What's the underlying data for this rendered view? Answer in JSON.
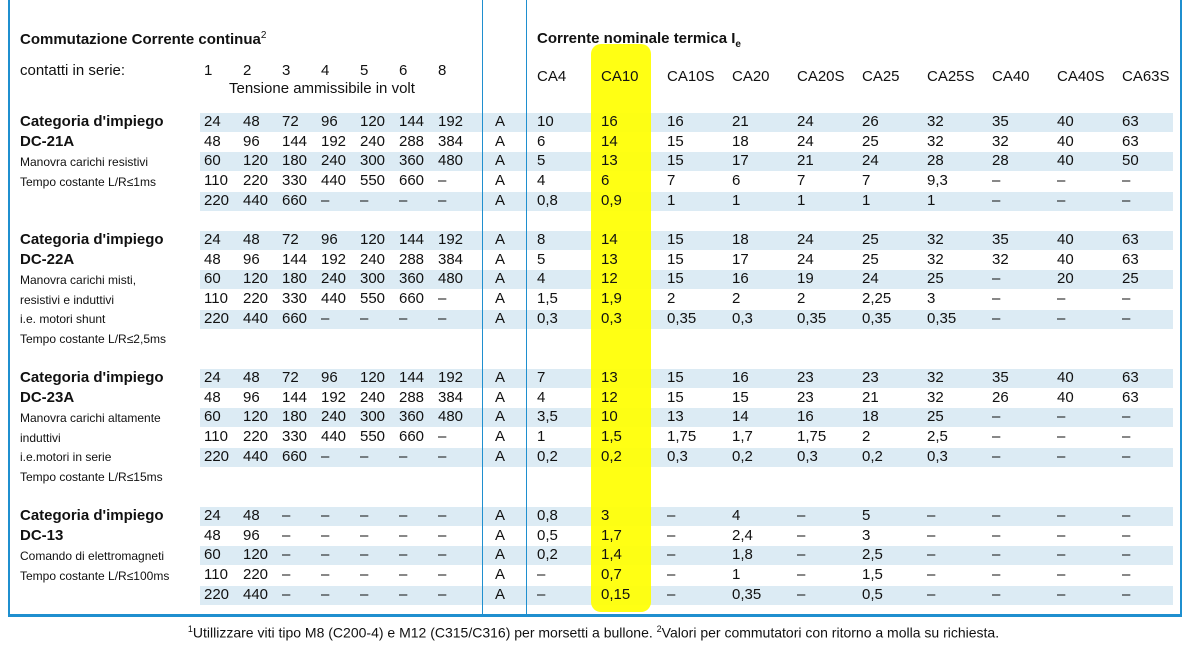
{
  "header": {
    "left_title": "Commutazione Corrente continua",
    "left_title_sup": "2",
    "right_title": "Corrente nominale termica I",
    "right_title_sub": "e",
    "contatti_label": "contatti in serie:",
    "series_numbers": [
      "1",
      "2",
      "3",
      "4",
      "5",
      "6",
      "8"
    ],
    "tensione_label": "Tensione ammissibile in volt",
    "models": [
      "CA4",
      "CA10",
      "CA10S",
      "CA20",
      "CA20S",
      "CA25",
      "CA25S",
      "CA40",
      "CA40S",
      "CA63S"
    ]
  },
  "groups": [
    {
      "title1": "Categoria d'impiego",
      "title2": "DC-21A",
      "desc": [
        "Manovra carichi resistivi",
        "Tempo costante L/R≤1ms"
      ],
      "rows": [
        {
          "v": [
            "24",
            "48",
            "72",
            "96",
            "120",
            "144",
            "192"
          ],
          "u": "A",
          "c": [
            "10",
            "16",
            "16",
            "21",
            "24",
            "26",
            "32",
            "35",
            "40",
            "63"
          ]
        },
        {
          "v": [
            "48",
            "96",
            "144",
            "192",
            "240",
            "288",
            "384"
          ],
          "u": "A",
          "c": [
            "6",
            "14",
            "15",
            "18",
            "24",
            "25",
            "32",
            "32",
            "40",
            "63"
          ]
        },
        {
          "v": [
            "60",
            "120",
            "180",
            "240",
            "300",
            "360",
            "480"
          ],
          "u": "A",
          "c": [
            "5",
            "13",
            "15",
            "17",
            "21",
            "24",
            "28",
            "28",
            "40",
            "50"
          ]
        },
        {
          "v": [
            "110",
            "220",
            "330",
            "440",
            "550",
            "660",
            "–"
          ],
          "u": "A",
          "c": [
            "4",
            "6",
            "7",
            "6",
            "7",
            "7",
            "9,3",
            "–",
            "–",
            "–"
          ]
        },
        {
          "v": [
            "220",
            "440",
            "660",
            "–",
            "–",
            "–",
            "–"
          ],
          "u": "A",
          "c": [
            "0,8",
            "0,9",
            "1",
            "1",
            "1",
            "1",
            "1",
            "–",
            "–",
            "–"
          ]
        }
      ]
    },
    {
      "title1": "Categoria d'impiego",
      "title2": "DC-22A",
      "desc": [
        "Manovra carichi misti,",
        "resistivi e induttivi",
        "i.e. motori shunt",
        "Tempo costante L/R≤2,5ms"
      ],
      "rows": [
        {
          "v": [
            "24",
            "48",
            "72",
            "96",
            "120",
            "144",
            "192"
          ],
          "u": "A",
          "c": [
            "8",
            "14",
            "15",
            "18",
            "24",
            "25",
            "32",
            "35",
            "40",
            "63"
          ]
        },
        {
          "v": [
            "48",
            "96",
            "144",
            "192",
            "240",
            "288",
            "384"
          ],
          "u": "A",
          "c": [
            "5",
            "13",
            "15",
            "17",
            "24",
            "25",
            "32",
            "32",
            "40",
            "63"
          ]
        },
        {
          "v": [
            "60",
            "120",
            "180",
            "240",
            "300",
            "360",
            "480"
          ],
          "u": "A",
          "c": [
            "4",
            "12",
            "15",
            "16",
            "19",
            "24",
            "25",
            "–",
            "20",
            "25"
          ]
        },
        {
          "v": [
            "110",
            "220",
            "330",
            "440",
            "550",
            "660",
            "–"
          ],
          "u": "A",
          "c": [
            "1,5",
            "1,9",
            "2",
            "2",
            "2",
            "2,25",
            "3",
            "–",
            "–",
            "–"
          ]
        },
        {
          "v": [
            "220",
            "440",
            "660",
            "–",
            "–",
            "–",
            "–"
          ],
          "u": "A",
          "c": [
            "0,3",
            "0,3",
            "0,35",
            "0,3",
            "0,35",
            "0,35",
            "0,35",
            "–",
            "–",
            "–"
          ]
        }
      ]
    },
    {
      "title1": "Categoria d'impiego",
      "title2": "DC-23A",
      "desc": [
        "Manovra carichi altamente",
        "induttivi",
        "i.e.motori in serie",
        "Tempo costante L/R≤15ms"
      ],
      "rows": [
        {
          "v": [
            "24",
            "48",
            "72",
            "96",
            "120",
            "144",
            "192"
          ],
          "u": "A",
          "c": [
            "7",
            "13",
            "15",
            "16",
            "23",
            "23",
            "32",
            "35",
            "40",
            "63"
          ]
        },
        {
          "v": [
            "48",
            "96",
            "144",
            "192",
            "240",
            "288",
            "384"
          ],
          "u": "A",
          "c": [
            "4",
            "12",
            "15",
            "15",
            "23",
            "21",
            "32",
            "26",
            "40",
            "63"
          ]
        },
        {
          "v": [
            "60",
            "120",
            "180",
            "240",
            "300",
            "360",
            "480"
          ],
          "u": "A",
          "c": [
            "3,5",
            "10",
            "13",
            "14",
            "16",
            "18",
            "25",
            "–",
            "–",
            "–"
          ]
        },
        {
          "v": [
            "110",
            "220",
            "330",
            "440",
            "550",
            "660",
            "–"
          ],
          "u": "A",
          "c": [
            "1",
            "1,5",
            "1,75",
            "1,7",
            "1,75",
            "2",
            "2,5",
            "–",
            "–",
            "–"
          ]
        },
        {
          "v": [
            "220",
            "440",
            "660",
            "–",
            "–",
            "–",
            "–"
          ],
          "u": "A",
          "c": [
            "0,2",
            "0,2",
            "0,3",
            "0,2",
            "0,3",
            "0,2",
            "0,3",
            "–",
            "–",
            "–"
          ]
        }
      ]
    },
    {
      "title1": "Categoria d'impiego",
      "title2": "DC-13",
      "desc": [
        "Comando di elettromagneti",
        "Tempo costante L/R≤100ms"
      ],
      "rows": [
        {
          "v": [
            "24",
            "48",
            "–",
            "–",
            "–",
            "–",
            "–"
          ],
          "u": "A",
          "c": [
            "0,8",
            "3",
            "–",
            "4",
            "–",
            "5",
            "–",
            "–",
            "–",
            "–"
          ]
        },
        {
          "v": [
            "48",
            "96",
            "–",
            "–",
            "–",
            "–",
            "–"
          ],
          "u": "A",
          "c": [
            "0,5",
            "1,7",
            "–",
            "2,4",
            "–",
            "3",
            "–",
            "–",
            "–",
            "–"
          ]
        },
        {
          "v": [
            "60",
            "120",
            "–",
            "–",
            "–",
            "–",
            "–"
          ],
          "u": "A",
          "c": [
            "0,2",
            "1,4",
            "–",
            "1,8",
            "–",
            "2,5",
            "–",
            "–",
            "–",
            "–"
          ]
        },
        {
          "v": [
            "110",
            "220",
            "–",
            "–",
            "–",
            "–",
            "–"
          ],
          "u": "A",
          "c": [
            "–",
            "0,7",
            "–",
            "1",
            "–",
            "1,5",
            "–",
            "–",
            "–",
            "–"
          ]
        },
        {
          "v": [
            "220",
            "440",
            "–",
            "–",
            "–",
            "–",
            "–"
          ],
          "u": "A",
          "c": [
            "–",
            "0,15",
            "–",
            "0,35",
            "–",
            "0,5",
            "–",
            "–",
            "–",
            "–"
          ]
        }
      ]
    }
  ],
  "footnote": {
    "sup1": "1",
    "text1": "Utillizzare viti tipo M8 (C200-4) e M12 (C315/C316) per morsetti a bullone. ",
    "sup2": "2",
    "text2": "Valori per commutatori con ritorno a molla su richiesta."
  },
  "colors": {
    "border": "#1f8fcf",
    "band": "#dcebf4",
    "highlight": "#ffff00"
  }
}
